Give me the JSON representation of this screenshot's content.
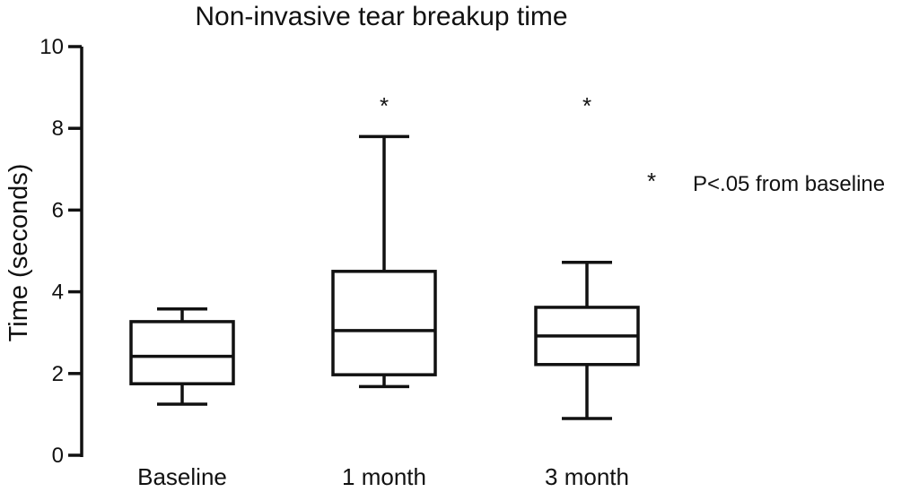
{
  "chart_data": {
    "type": "box",
    "title": "Non-invasive tear breakup time",
    "ylabel": "Time (seconds)",
    "xlabel": "",
    "ylim": [
      0,
      10
    ],
    "yticks": [
      0,
      2,
      4,
      6,
      8,
      10
    ],
    "grid": false,
    "categories": [
      "Baseline",
      "1 month",
      "3 month"
    ],
    "boxes": [
      {
        "category": "Baseline",
        "min": 1.25,
        "q1": 1.75,
        "median": 2.42,
        "q3": 3.27,
        "max": 3.58,
        "significant": false
      },
      {
        "category": "1 month",
        "min": 1.68,
        "q1": 1.97,
        "median": 3.05,
        "q3": 4.5,
        "max": 7.8,
        "significant": true
      },
      {
        "category": "3 month",
        "min": 0.9,
        "q1": 2.22,
        "median": 2.92,
        "q3": 3.62,
        "max": 4.72,
        "significant": true
      }
    ],
    "significance_marker": "*",
    "annotation": {
      "marker": "*",
      "text": "P<.05 from baseline"
    }
  }
}
